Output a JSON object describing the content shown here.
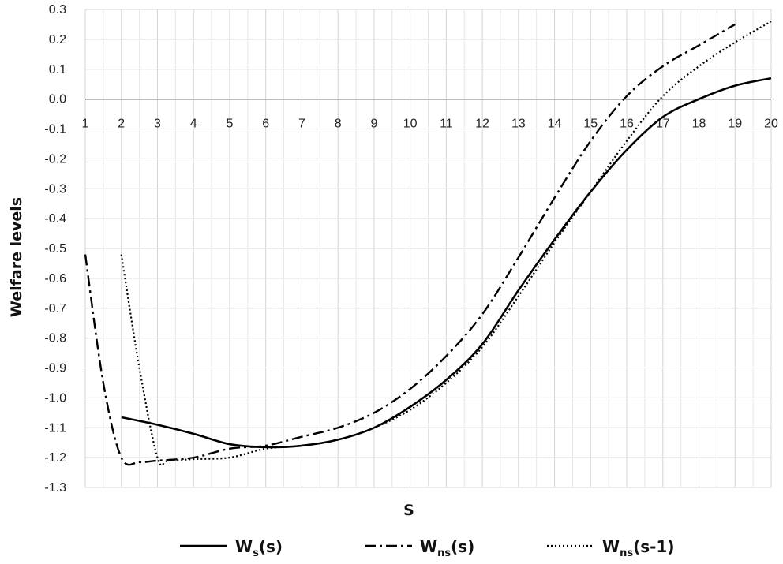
{
  "chart_data": {
    "type": "line",
    "title": "",
    "xlabel": "S",
    "ylabel": "Welfare levels",
    "xlim": [
      1,
      20
    ],
    "ylim": [
      -1.3,
      0.3
    ],
    "x_ticks": [
      1,
      2,
      3,
      4,
      5,
      6,
      7,
      8,
      9,
      10,
      11,
      12,
      13,
      14,
      15,
      16,
      17,
      18,
      19,
      20
    ],
    "y_ticks": [
      0.3,
      0.2,
      0.1,
      0.0,
      -0.1,
      -0.2,
      -0.3,
      -0.4,
      -0.5,
      -0.6,
      -0.7,
      -0.8,
      -0.9,
      -1.0,
      -1.1,
      -1.2,
      -1.3
    ],
    "y_tick_labels": [
      "0.3",
      "0.2",
      "0.1",
      "0.0",
      "-0.1",
      "-0.2",
      "-0.3",
      "-0.4",
      "-0.5",
      "-0.6",
      "-0.7",
      "-0.8",
      "-0.9",
      "-1.0",
      "-1.1",
      "-1.2",
      "-1.3"
    ],
    "grid": true,
    "legend_position": "bottom",
    "series": [
      {
        "name": "Ws(s)",
        "legend_main": "W",
        "legend_sub": "s",
        "legend_tail": "(s)",
        "style": "solid",
        "color": "#000000",
        "x": [
          2,
          3,
          4,
          5,
          6,
          7,
          8,
          9,
          10,
          11,
          12,
          13,
          14,
          15,
          16,
          17,
          18,
          19,
          20
        ],
        "y": [
          -1.065,
          -1.09,
          -1.12,
          -1.155,
          -1.165,
          -1.16,
          -1.14,
          -1.1,
          -1.03,
          -0.94,
          -0.82,
          -0.64,
          -0.47,
          -0.31,
          -0.17,
          -0.06,
          0.0,
          0.045,
          0.07
        ]
      },
      {
        "name": "Wns(s)",
        "legend_main": "W",
        "legend_sub": "ns",
        "legend_tail": "(s)",
        "style": "dashdot",
        "color": "#000000",
        "x": [
          1,
          1.5,
          2,
          2.5,
          3,
          4,
          5,
          6,
          7,
          8,
          9,
          10,
          11,
          12,
          13,
          14,
          15,
          16,
          17,
          18,
          19
        ],
        "y": [
          -0.52,
          -0.95,
          -1.2,
          -1.215,
          -1.21,
          -1.2,
          -1.17,
          -1.16,
          -1.13,
          -1.1,
          -1.05,
          -0.97,
          -0.86,
          -0.72,
          -0.53,
          -0.33,
          -0.14,
          0.01,
          0.11,
          0.18,
          0.25
        ]
      },
      {
        "name": "Wns(s-1)",
        "legend_main": "W",
        "legend_sub": "ns",
        "legend_tail": "(s-1)",
        "style": "dotted",
        "color": "#000000",
        "x": [
          2,
          2.5,
          3,
          3.3,
          4,
          5,
          6,
          7,
          8,
          9,
          10,
          11,
          12,
          13,
          14,
          15,
          16,
          17,
          18,
          19,
          20
        ],
        "y": [
          -0.52,
          -0.9,
          -1.2,
          -1.21,
          -1.205,
          -1.2,
          -1.17,
          -1.16,
          -1.14,
          -1.1,
          -1.04,
          -0.95,
          -0.83,
          -0.66,
          -0.48,
          -0.31,
          -0.14,
          0.01,
          0.11,
          0.19,
          0.26
        ]
      }
    ]
  }
}
